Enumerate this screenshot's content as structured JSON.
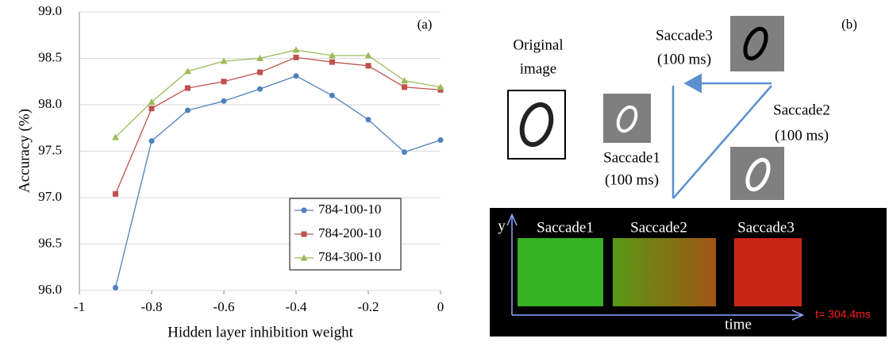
{
  "chart_data": {
    "type": "line",
    "annotation": "(a)",
    "xlabel": "Hidden layer inhibition weight",
    "ylabel": "Accuracy (%)",
    "x": [
      -0.9,
      -0.8,
      -0.7,
      -0.6,
      -0.5,
      -0.4,
      -0.3,
      -0.2,
      -0.1,
      0
    ],
    "series": [
      {
        "name": "784-100-10",
        "color": "#4f81bd",
        "marker": "circle",
        "values": [
          96.03,
          97.61,
          97.94,
          98.04,
          98.17,
          98.31,
          98.1,
          97.84,
          97.49,
          97.62
        ]
      },
      {
        "name": "784-200-10",
        "color": "#c0504d",
        "marker": "square",
        "values": [
          97.04,
          97.96,
          98.18,
          98.25,
          98.35,
          98.51,
          98.46,
          98.42,
          98.19,
          98.16
        ]
      },
      {
        "name": "784-300-10",
        "color": "#9bbb59",
        "marker": "triangle",
        "values": [
          97.65,
          98.03,
          98.36,
          98.47,
          98.5,
          98.59,
          98.53,
          98.53,
          98.26,
          98.19
        ]
      }
    ],
    "xlim": [
      -1,
      0
    ],
    "ylim": [
      96,
      99
    ],
    "xticks": [
      -1,
      -0.8,
      -0.6,
      -0.4,
      -0.2,
      0
    ],
    "yticks": [
      {
        "value": 96,
        "label": "96.0"
      },
      96.5,
      {
        "value": 97,
        "label": "97.0"
      },
      97.5,
      {
        "value": 98,
        "label": "98.0"
      },
      98.5,
      {
        "value": 99,
        "label": "99.0"
      }
    ],
    "grid": true,
    "legend": "lower right"
  },
  "panel_b": {
    "label": "(b)",
    "original_image": [
      "Original",
      "image"
    ],
    "saccades": [
      {
        "name": "Saccade1",
        "duration": "(100 ms)"
      },
      {
        "name": "Saccade2",
        "duration": "(100 ms)"
      },
      {
        "name": "Saccade3",
        "duration": "(100 ms)"
      }
    ],
    "raster": {
      "y_label": "y",
      "x_label": "time",
      "labels": [
        "Saccade1",
        "Saccade2",
        "Saccade3"
      ],
      "timestamp": "t= 304.4ms"
    }
  }
}
